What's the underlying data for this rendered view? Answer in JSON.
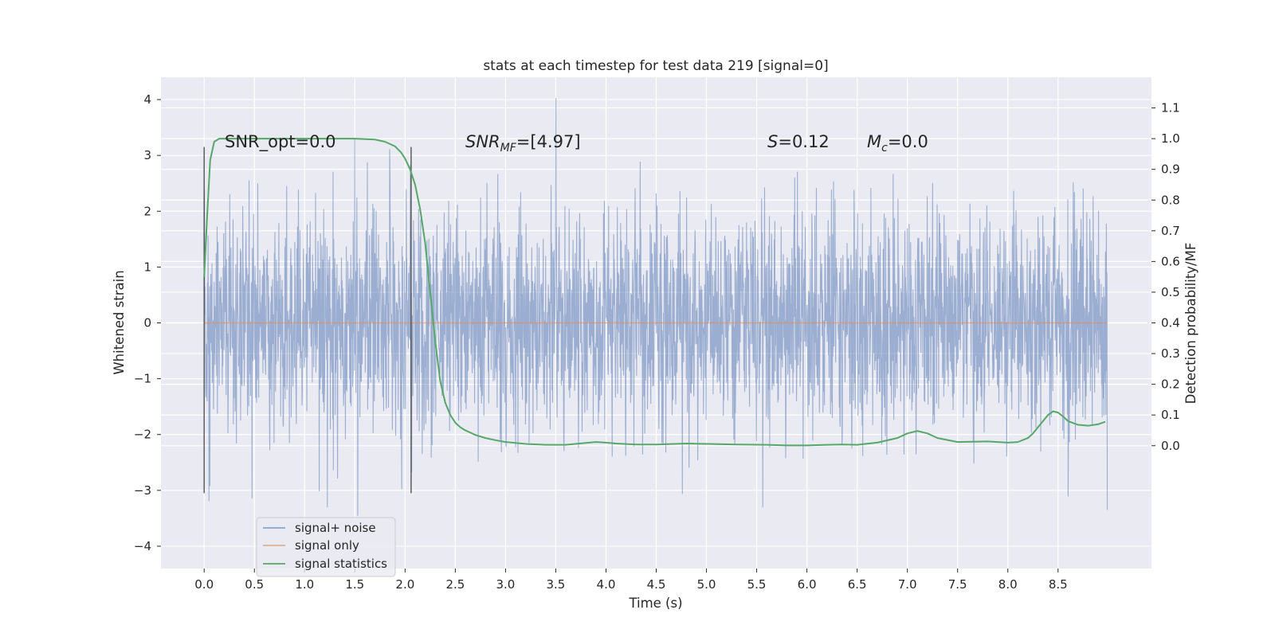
{
  "chart_data": {
    "type": "line",
    "title": "stats at each timestep for test data 219 [signal=0]",
    "xlabel": "Time (s)",
    "ylabel": "Whitened strain",
    "y2label": "Detection probability/MF",
    "xlim": [
      -0.43,
      9.43
    ],
    "ylim": [
      -4.4,
      4.4
    ],
    "y2lim": [
      -0.4,
      1.2
    ],
    "xticks": [
      0.0,
      0.5,
      1.0,
      1.5,
      2.0,
      2.5,
      3.0,
      3.5,
      4.0,
      4.5,
      5.0,
      5.5,
      6.0,
      6.5,
      7.0,
      7.5,
      8.0,
      8.5
    ],
    "xtick_labels": [
      "0.0",
      "0.5",
      "1.0",
      "1.5",
      "2.0",
      "2.5",
      "3.0",
      "3.5",
      "4.0",
      "4.5",
      "5.0",
      "5.5",
      "6.0",
      "6.5",
      "7.0",
      "7.5",
      "8.0",
      "8.5"
    ],
    "yticks": [
      4,
      3,
      2,
      1,
      0,
      -1,
      -2,
      -3,
      -4
    ],
    "ytick_labels": [
      "4",
      "3",
      "2",
      "1",
      "0",
      "−1",
      "−2",
      "−3",
      "−4"
    ],
    "y2ticks": [
      1.1,
      1.0,
      0.9,
      0.8,
      0.7,
      0.6,
      0.5,
      0.4,
      0.3,
      0.2,
      0.1,
      0.0
    ],
    "y2tick_labels": [
      "1.1",
      "1.0",
      "0.9",
      "0.8",
      "0.7",
      "0.6",
      "0.5",
      "0.4",
      "0.3",
      "0.2",
      "0.1",
      "0.0"
    ],
    "grid": true,
    "legend_position": "lower-left",
    "annotations": {
      "snr_opt": "SNR_opt=0.0",
      "snr_mf_main": "SNR",
      "snr_mf_sub": "MF",
      "snr_mf_value": "=[4.97]",
      "s_var": "S",
      "s_value": "=0.12",
      "mc_main": "M",
      "mc_sub": "c",
      "mc_value": "=0.0"
    },
    "vertical_markers": [
      {
        "x": 0.0,
        "y_range": [
          -3.05,
          3.15
        ]
      },
      {
        "x": 2.06,
        "y_range": [
          -3.05,
          3.15
        ]
      }
    ],
    "series": [
      {
        "name": "signal+ noise",
        "color": "#4c72b0",
        "x_range": [
          0.0,
          8.99
        ],
        "n_points": 3000,
        "mean": 0.0,
        "std": 1.0,
        "noise_seed": 219,
        "y_extremes": [
          [
            3.5,
            4.02
          ],
          [
            1.5,
            3.3
          ],
          [
            1.53,
            -3.45
          ],
          [
            8.99,
            -3.35
          ],
          [
            5.56,
            -3.3
          ]
        ]
      },
      {
        "name": "signal only",
        "color": "#dd8452",
        "x": [
          0.0,
          8.99
        ],
        "y": [
          0.0,
          0.0
        ]
      },
      {
        "name": "signal statistics",
        "color": "#55a868",
        "axis": "right",
        "x": [
          0.0,
          0.03,
          0.06,
          0.1,
          0.15,
          0.2,
          0.3,
          0.5,
          1.0,
          1.5,
          1.7,
          1.8,
          1.9,
          1.96,
          2.0,
          2.05,
          2.1,
          2.15,
          2.2,
          2.25,
          2.3,
          2.35,
          2.4,
          2.45,
          2.5,
          2.55,
          2.6,
          2.7,
          2.8,
          2.9,
          3.0,
          3.2,
          3.4,
          3.6,
          3.8,
          3.9,
          4.0,
          4.1,
          4.3,
          4.5,
          4.8,
          5.0,
          5.3,
          5.6,
          5.8,
          6.0,
          6.2,
          6.35,
          6.5,
          6.7,
          6.9,
          7.0,
          7.1,
          7.2,
          7.3,
          7.5,
          7.8,
          8.0,
          8.1,
          8.2,
          8.25,
          8.3,
          8.35,
          8.4,
          8.45,
          8.5,
          8.55,
          8.6,
          8.7,
          8.8,
          8.9,
          8.97
        ],
        "y": [
          0.55,
          0.75,
          0.93,
          0.99,
          1.0,
          1.0,
          1.0,
          1.0,
          1.0,
          1.0,
          0.997,
          0.99,
          0.975,
          0.955,
          0.935,
          0.9,
          0.85,
          0.77,
          0.66,
          0.5,
          0.34,
          0.21,
          0.14,
          0.1,
          0.075,
          0.06,
          0.05,
          0.035,
          0.025,
          0.018,
          0.012,
          0.006,
          0.003,
          0.003,
          0.009,
          0.012,
          0.01,
          0.007,
          0.004,
          0.004,
          0.007,
          0.006,
          0.004,
          0.003,
          0.001,
          0.001,
          0.003,
          0.004,
          0.003,
          0.01,
          0.025,
          0.04,
          0.048,
          0.04,
          0.025,
          0.012,
          0.014,
          0.01,
          0.012,
          0.025,
          0.04,
          0.06,
          0.08,
          0.1,
          0.112,
          0.108,
          0.095,
          0.08,
          0.068,
          0.065,
          0.07,
          0.078
        ]
      }
    ]
  }
}
